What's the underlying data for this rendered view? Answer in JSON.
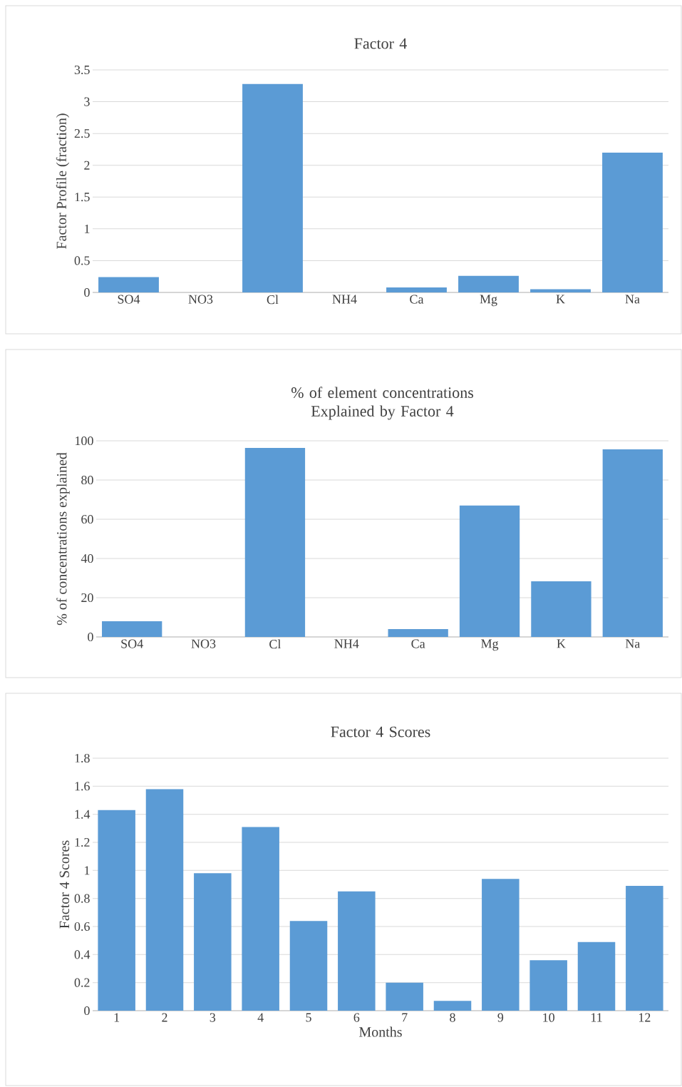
{
  "chart_data": [
    {
      "type": "bar",
      "title": "Factor 4",
      "ylabel": "Factor Profile (fraction)",
      "categories": [
        "SO4",
        "NO3",
        "Cl",
        "NH4",
        "Ca",
        "Mg",
        "K",
        "Na"
      ],
      "color": "#5b9bd5",
      "values": [
        0.24,
        0,
        3.28,
        0,
        0.08,
        0.26,
        0.05,
        2.2
      ],
      "ylim": [
        0,
        3.5
      ],
      "yticks": [
        0,
        0.5,
        1,
        1.5,
        2,
        2.5,
        3,
        3.5
      ],
      "grid": "y"
    },
    {
      "type": "bar",
      "title": "% of element concentrations Explained by Factor 4",
      "ylabel": "% of concentrations explained",
      "categories": [
        "SO4",
        "NO3",
        "Cl",
        "NH4",
        "Ca",
        "Mg",
        "K",
        "Na"
      ],
      "color": "#5b9bd5",
      "values": [
        8,
        0,
        96.4,
        0,
        4,
        67,
        28.4,
        95.6
      ],
      "ylim": [
        0,
        100
      ],
      "yticks": [
        0,
        20,
        40,
        60,
        80,
        100
      ],
      "grid": "y"
    },
    {
      "type": "bar",
      "title": "Factor 4 Scores",
      "ylabel": "Factor 4 Scores",
      "xlabel": "Months",
      "categories": [
        "1",
        "2",
        "3",
        "4",
        "5",
        "6",
        "7",
        "8",
        "9",
        "10",
        "11",
        "12"
      ],
      "color": "#5b9bd5",
      "values": [
        1.43,
        1.58,
        0.98,
        1.31,
        0.64,
        0.85,
        0.2,
        0.07,
        0.94,
        0.36,
        0.49,
        0.89
      ],
      "ylim": [
        0,
        1.8
      ],
      "yticks": [
        0,
        0.2,
        0.4,
        0.6,
        0.8,
        1,
        1.2,
        1.4,
        1.6,
        1.8
      ],
      "grid": "y"
    }
  ]
}
